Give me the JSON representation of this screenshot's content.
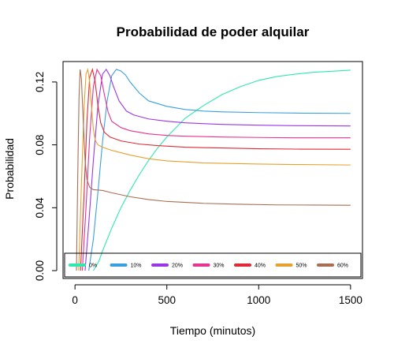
{
  "chart_data": {
    "type": "line",
    "title": "Probabilidad de poder alquilar",
    "xlabel": "Tiempo (minutos)",
    "ylabel": "Probabilidad",
    "xlim": [
      -65,
      1565
    ],
    "ylim": [
      -0.005,
      0.133
    ],
    "x_ticks": [
      0,
      500,
      1000,
      1500
    ],
    "y_ticks": [
      0.0,
      0.04,
      0.08,
      0.12
    ],
    "x_tick_labels": [
      "0",
      "500",
      "1000",
      "1500"
    ],
    "y_tick_labels": [
      "0.00",
      "0.04",
      "0.08",
      "0.12"
    ],
    "grid": false,
    "legend_position": "bottom",
    "series": [
      {
        "name": "0%",
        "color": "#2EE8B0",
        "points": [
          [
            100,
            0
          ],
          [
            130,
            0.006
          ],
          [
            150,
            0.0125
          ],
          [
            200,
            0.027
          ],
          [
            250,
            0.04
          ],
          [
            300,
            0.051
          ],
          [
            350,
            0.061
          ],
          [
            400,
            0.07
          ],
          [
            450,
            0.078
          ],
          [
            500,
            0.085
          ],
          [
            550,
            0.091
          ],
          [
            600,
            0.097
          ],
          [
            700,
            0.105
          ],
          [
            800,
            0.112
          ],
          [
            900,
            0.117
          ],
          [
            1000,
            0.121
          ],
          [
            1100,
            0.1235
          ],
          [
            1200,
            0.125
          ],
          [
            1300,
            0.1262
          ],
          [
            1400,
            0.1268
          ],
          [
            1500,
            0.1275
          ]
        ]
      },
      {
        "name": "10%",
        "color": "#3A9FE0",
        "points": [
          [
            75,
            0
          ],
          [
            100,
            0.02
          ],
          [
            125,
            0.05
          ],
          [
            150,
            0.082
          ],
          [
            175,
            0.108
          ],
          [
            200,
            0.124
          ],
          [
            225,
            0.128
          ],
          [
            250,
            0.127
          ],
          [
            275,
            0.1245
          ],
          [
            300,
            0.12
          ],
          [
            350,
            0.113
          ],
          [
            400,
            0.108
          ],
          [
            500,
            0.1045
          ],
          [
            600,
            0.1025
          ],
          [
            700,
            0.1015
          ],
          [
            800,
            0.101
          ],
          [
            1000,
            0.1005
          ],
          [
            1200,
            0.1002
          ],
          [
            1500,
            0.1
          ]
        ]
      },
      {
        "name": "20%",
        "color": "#9A36E8",
        "points": [
          [
            55,
            0
          ],
          [
            75,
            0.03
          ],
          [
            100,
            0.07
          ],
          [
            125,
            0.105
          ],
          [
            150,
            0.125
          ],
          [
            170,
            0.128
          ],
          [
            190,
            0.124
          ],
          [
            210,
            0.117
          ],
          [
            240,
            0.108
          ],
          [
            280,
            0.1015
          ],
          [
            320,
            0.099
          ],
          [
            400,
            0.0965
          ],
          [
            500,
            0.095
          ],
          [
            600,
            0.094
          ],
          [
            800,
            0.093
          ],
          [
            1000,
            0.0925
          ],
          [
            1200,
            0.0922
          ],
          [
            1500,
            0.092
          ]
        ]
      },
      {
        "name": "30%",
        "color": "#E8338F",
        "points": [
          [
            40,
            0
          ],
          [
            60,
            0.04
          ],
          [
            80,
            0.085
          ],
          [
            100,
            0.117
          ],
          [
            120,
            0.128
          ],
          [
            140,
            0.124
          ],
          [
            160,
            0.112
          ],
          [
            180,
            0.101
          ],
          [
            200,
            0.095
          ],
          [
            250,
            0.091
          ],
          [
            300,
            0.089
          ],
          [
            400,
            0.087
          ],
          [
            500,
            0.086
          ],
          [
            600,
            0.0855
          ],
          [
            800,
            0.085
          ],
          [
            1000,
            0.0847
          ],
          [
            1200,
            0.0845
          ],
          [
            1500,
            0.0845
          ]
        ]
      },
      {
        "name": "40%",
        "color": "#E02A35",
        "points": [
          [
            30,
            0
          ],
          [
            50,
            0.05
          ],
          [
            65,
            0.095
          ],
          [
            80,
            0.123
          ],
          [
            95,
            0.128
          ],
          [
            110,
            0.12
          ],
          [
            125,
            0.105
          ],
          [
            140,
            0.094
          ],
          [
            160,
            0.088
          ],
          [
            190,
            0.085
          ],
          [
            250,
            0.0825
          ],
          [
            350,
            0.0805
          ],
          [
            450,
            0.0795
          ],
          [
            600,
            0.0785
          ],
          [
            800,
            0.078
          ],
          [
            1000,
            0.0775
          ],
          [
            1200,
            0.0773
          ],
          [
            1500,
            0.0772
          ]
        ]
      },
      {
        "name": "50%",
        "color": "#E8A030",
        "points": [
          [
            20,
            0
          ],
          [
            35,
            0.055
          ],
          [
            50,
            0.105
          ],
          [
            60,
            0.125
          ],
          [
            70,
            0.128
          ],
          [
            80,
            0.12
          ],
          [
            90,
            0.104
          ],
          [
            100,
            0.09
          ],
          [
            110,
            0.083
          ],
          [
            125,
            0.08
          ],
          [
            150,
            0.0785
          ],
          [
            200,
            0.0765
          ],
          [
            300,
            0.0735
          ],
          [
            400,
            0.0712
          ],
          [
            500,
            0.0698
          ],
          [
            700,
            0.0685
          ],
          [
            1000,
            0.0678
          ],
          [
            1200,
            0.0675
          ],
          [
            1500,
            0.0672
          ]
        ]
      },
      {
        "name": "60%",
        "color": "#A86E52",
        "points": [
          [
            8,
            0
          ],
          [
            15,
            0.06
          ],
          [
            22,
            0.11
          ],
          [
            28,
            0.128
          ],
          [
            35,
            0.122
          ],
          [
            45,
            0.095
          ],
          [
            55,
            0.07
          ],
          [
            65,
            0.058
          ],
          [
            80,
            0.053
          ],
          [
            100,
            0.0515
          ],
          [
            150,
            0.051
          ],
          [
            200,
            0.0495
          ],
          [
            300,
            0.047
          ],
          [
            400,
            0.0452
          ],
          [
            500,
            0.044
          ],
          [
            700,
            0.0428
          ],
          [
            900,
            0.0422
          ],
          [
            1100,
            0.0418
          ],
          [
            1300,
            0.0417
          ],
          [
            1500,
            0.0416
          ]
        ]
      }
    ]
  }
}
